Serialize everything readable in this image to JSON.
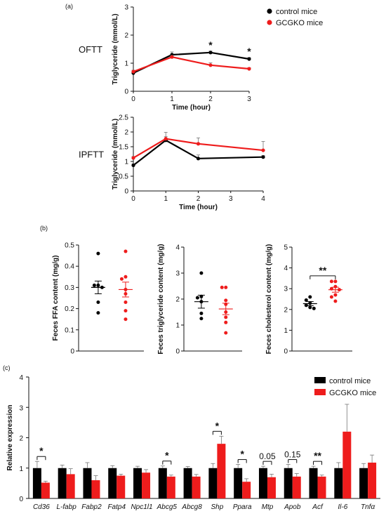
{
  "colors": {
    "control": "#000000",
    "gcgko": "#ee1c1c"
  },
  "panels": {
    "a": "(a)",
    "b": "(b)",
    "c": "(c)"
  },
  "chart_data": [
    {
      "type": "line",
      "row_label": "OFTT",
      "ylabel": "Triglyceride (mmol/L)",
      "xlabel": "Time (hour)",
      "xlim": [
        0,
        3
      ],
      "ylim": [
        0,
        3
      ],
      "x_ticks": [
        "0",
        "1",
        "2",
        "3"
      ],
      "y_ticks": [
        "0",
        "1",
        "2",
        "3"
      ],
      "legend": {
        "position": "top-right",
        "entries": [
          "control mice",
          "GCGKO mice"
        ]
      },
      "series": [
        {
          "name": "control mice",
          "x": [
            0,
            1,
            2,
            3
          ],
          "values": [
            0.65,
            1.3,
            1.38,
            1.15
          ],
          "err": [
            0.05,
            0.1,
            0.05,
            0.05
          ]
        },
        {
          "name": "GCGKO mice",
          "x": [
            0,
            1,
            2,
            3
          ],
          "values": [
            0.7,
            1.22,
            0.93,
            0.8
          ],
          "err": [
            0.05,
            0.06,
            0.08,
            0.04
          ]
        }
      ],
      "annotations": [
        {
          "x": 2,
          "text": "*"
        },
        {
          "x": 3,
          "text": "*"
        }
      ]
    },
    {
      "type": "line",
      "row_label": "IPFTT",
      "ylabel": "Triglyceride (mmol/L)",
      "xlabel": "Time (hour)",
      "xlim": [
        0,
        4
      ],
      "ylim": [
        0,
        2.5
      ],
      "x_ticks": [
        "0",
        "1",
        "2",
        "3",
        "4"
      ],
      "y_ticks": [
        "0",
        "0.5",
        "1",
        "1.5",
        "2",
        "2.5"
      ],
      "series": [
        {
          "name": "control mice",
          "x": [
            0,
            1,
            2,
            4
          ],
          "values": [
            0.87,
            1.72,
            1.1,
            1.15
          ],
          "err": [
            0.05,
            0.12,
            0.12,
            0.05
          ]
        },
        {
          "name": "GCGKO mice",
          "x": [
            0,
            1,
            2,
            4
          ],
          "values": [
            1.12,
            1.77,
            1.6,
            1.38
          ],
          "err": [
            0.05,
            0.22,
            0.2,
            0.3
          ]
        }
      ]
    },
    {
      "type": "scatter",
      "ylabel": "Feces FFA content (mg/g)",
      "ylim": [
        0,
        0.5
      ],
      "y_ticks": [
        "0",
        "0.1",
        "0.2",
        "0.3",
        "0.4",
        "0.5"
      ],
      "groups": [
        {
          "name": "control mice",
          "values": [
            0.46,
            0.31,
            0.31,
            0.3,
            0.23,
            0.18
          ],
          "mean": 0.3,
          "sem": 0.03
        },
        {
          "name": "GCGKO mice",
          "values": [
            0.47,
            0.35,
            0.34,
            0.29,
            0.27,
            0.23,
            0.19,
            0.15
          ],
          "mean": 0.29,
          "sem": 0.035
        }
      ]
    },
    {
      "type": "scatter",
      "ylabel": "Feces triglyceride content (mg/g)",
      "ylim": [
        0,
        4
      ],
      "y_ticks": [
        "0",
        "1",
        "2",
        "3",
        "4"
      ],
      "groups": [
        {
          "name": "control mice",
          "values": [
            3.0,
            2.1,
            2.05,
            1.9,
            1.45,
            1.25
          ],
          "mean": 1.9,
          "sem": 0.25
        },
        {
          "name": "GCGKO mice",
          "values": [
            2.45,
            2.45,
            1.95,
            1.8,
            1.5,
            1.3,
            1.1,
            0.7
          ],
          "mean": 1.62,
          "sem": 0.22
        }
      ]
    },
    {
      "type": "scatter",
      "ylabel": "Feces cholesterol content (mg/g)",
      "ylim": [
        0,
        5
      ],
      "y_ticks": [
        "0",
        "1",
        "2",
        "3",
        "4",
        "5"
      ],
      "groups": [
        {
          "name": "control mice",
          "values": [
            2.6,
            2.45,
            2.3,
            2.2,
            2.1,
            2.05
          ],
          "mean": 2.28,
          "sem": 0.1
        },
        {
          "name": "GCGKO mice",
          "values": [
            3.35,
            3.35,
            3.1,
            3.0,
            2.95,
            2.7,
            2.6,
            2.4
          ],
          "mean": 2.95,
          "sem": 0.12
        }
      ],
      "annotations": [
        {
          "text": "**"
        }
      ]
    },
    {
      "type": "bar",
      "ylabel": "Relative expression",
      "ylim": [
        0,
        4
      ],
      "y_ticks": [
        "0",
        "1",
        "2",
        "3",
        "4"
      ],
      "categories": [
        "Cd36",
        "L-fabp",
        "Fabp2",
        "Fatp4",
        "Npc1l1",
        "Abcg5",
        "Abcg8",
        "Shp",
        "Ppara",
        "Mtp",
        "Apob",
        "Acf",
        "Il-6",
        "Tnfα"
      ],
      "legend": {
        "position": "top-right",
        "entries": [
          "control mice",
          "GCGKO mice"
        ]
      },
      "series": [
        {
          "name": "control mice",
          "values": [
            1,
            1,
            1,
            1,
            1,
            1,
            1,
            1,
            1,
            1,
            1,
            1,
            1,
            1
          ],
          "err": [
            0.22,
            0.1,
            0.18,
            0.08,
            0.06,
            0.07,
            0.05,
            0.15,
            0.12,
            0.06,
            0.12,
            0.06,
            0.18,
            0.15
          ]
        },
        {
          "name": "GCGKO mice",
          "values": [
            0.52,
            0.8,
            0.6,
            0.75,
            0.85,
            0.72,
            0.72,
            1.8,
            0.55,
            0.7,
            0.72,
            0.72,
            2.2,
            1.18
          ],
          "err": [
            0.05,
            0.18,
            0.15,
            0.05,
            0.1,
            0.05,
            0.07,
            0.25,
            0.1,
            0.1,
            0.1,
            0.05,
            0.9,
            0.25
          ]
        }
      ],
      "annotations": [
        {
          "category": "Cd36",
          "text": "*"
        },
        {
          "category": "Abcg5",
          "text": "*"
        },
        {
          "category": "Shp",
          "text": "*"
        },
        {
          "category": "Ppara",
          "text": "*"
        },
        {
          "category": "Mtp",
          "text": "0.05"
        },
        {
          "category": "Apob",
          "text": "0.15"
        },
        {
          "category": "Acf",
          "text": "**"
        }
      ]
    }
  ]
}
